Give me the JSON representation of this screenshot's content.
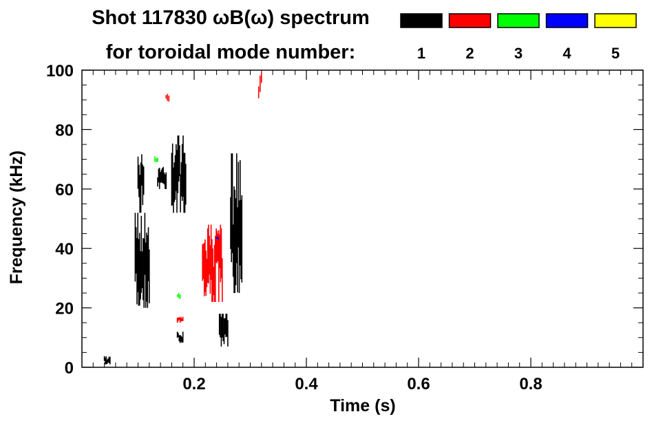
{
  "chart_data": {
    "type": "heatmap",
    "title_line1": "Shot 117830 ωB(ω) spectrum",
    "title_line2": "for toroidal mode number:",
    "xlabel": "Time (s)",
    "ylabel": "Frequency (kHz)",
    "xlim": [
      0.0,
      1.0
    ],
    "ylim": [
      0,
      100
    ],
    "x_ticks": [
      "0.2",
      "0.4",
      "0.6",
      "0.8"
    ],
    "x_tick_values": [
      0.2,
      0.4,
      0.6,
      0.8
    ],
    "y_ticks": [
      "0",
      "20",
      "40",
      "60",
      "80",
      "100"
    ],
    "y_tick_values": [
      0,
      20,
      40,
      60,
      80,
      100
    ],
    "legend": [
      {
        "mode": "1",
        "color": "#000000"
      },
      {
        "mode": "2",
        "color": "#ff0000"
      },
      {
        "mode": "3",
        "color": "#00ff00"
      },
      {
        "mode": "4",
        "color": "#0000ff"
      },
      {
        "mode": "5",
        "color": "#ffff00"
      }
    ],
    "series": [
      {
        "mode": "1",
        "color": "#000000",
        "regions": [
          {
            "t": [
              0.095,
              0.12
            ],
            "f": [
              20,
              52
            ]
          },
          {
            "t": [
              0.1,
              0.11
            ],
            "f": [
              52,
              72
            ]
          },
          {
            "t": [
              0.135,
              0.15
            ],
            "f": [
              60,
              68
            ]
          },
          {
            "t": [
              0.16,
              0.185
            ],
            "f": [
              52,
              78
            ]
          },
          {
            "t": [
              0.17,
              0.18
            ],
            "f": [
              8,
              12
            ]
          },
          {
            "t": [
              0.245,
              0.26
            ],
            "f": [
              7,
              18
            ]
          },
          {
            "t": [
              0.265,
              0.285
            ],
            "f": [
              25,
              72
            ]
          },
          {
            "t": [
              0.04,
              0.05
            ],
            "f": [
              1,
              4
            ]
          }
        ]
      },
      {
        "mode": "2",
        "color": "#ff0000",
        "regions": [
          {
            "t": [
              0.215,
              0.25
            ],
            "f": [
              22,
              48
            ]
          },
          {
            "t": [
              0.17,
              0.18
            ],
            "f": [
              15,
              17
            ]
          },
          {
            "t": [
              0.15,
              0.155
            ],
            "f": [
              89,
              92
            ]
          },
          {
            "t": [
              0.315,
              0.32
            ],
            "f": [
              90,
              100
            ]
          }
        ]
      },
      {
        "mode": "3",
        "color": "#00ff00",
        "regions": [
          {
            "t": [
              0.17,
              0.175
            ],
            "f": [
              23,
              25
            ]
          },
          {
            "t": [
              0.13,
              0.135
            ],
            "f": [
              69,
              71
            ]
          }
        ]
      },
      {
        "mode": "4",
        "color": "#0000ff",
        "regions": [
          {
            "t": [
              0.24,
              0.243
            ],
            "f": [
              43,
              44
            ]
          }
        ]
      }
    ]
  }
}
